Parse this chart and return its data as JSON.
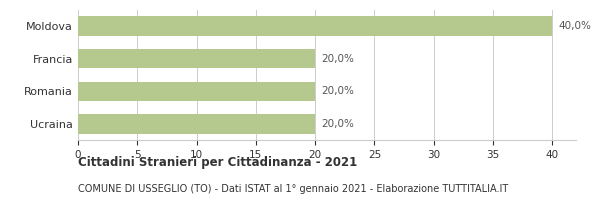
{
  "categories": [
    "Ucraina",
    "Romania",
    "Francia",
    "Moldova"
  ],
  "values": [
    20.0,
    20.0,
    20.0,
    40.0
  ],
  "bar_color": "#b5c98e",
  "bar_labels": [
    "20,0%",
    "20,0%",
    "20,0%",
    "40,0%"
  ],
  "xlim": [
    0,
    42
  ],
  "xticks": [
    0,
    5,
    10,
    15,
    20,
    25,
    30,
    35,
    40
  ],
  "title_bold": "Cittadini Stranieri per Cittadinanza - 2021",
  "subtitle": "COMUNE DI USSEGLIO (TO) - Dati ISTAT al 1° gennaio 2021 - Elaborazione TUTTITALIA.IT",
  "title_fontsize": 8.5,
  "subtitle_fontsize": 7.0,
  "label_fontsize": 7.5,
  "tick_fontsize": 7.5,
  "ytick_fontsize": 8,
  "background_color": "#ffffff",
  "grid_color": "#cccccc",
  "bar_label_color": "#555555",
  "text_color": "#333333"
}
